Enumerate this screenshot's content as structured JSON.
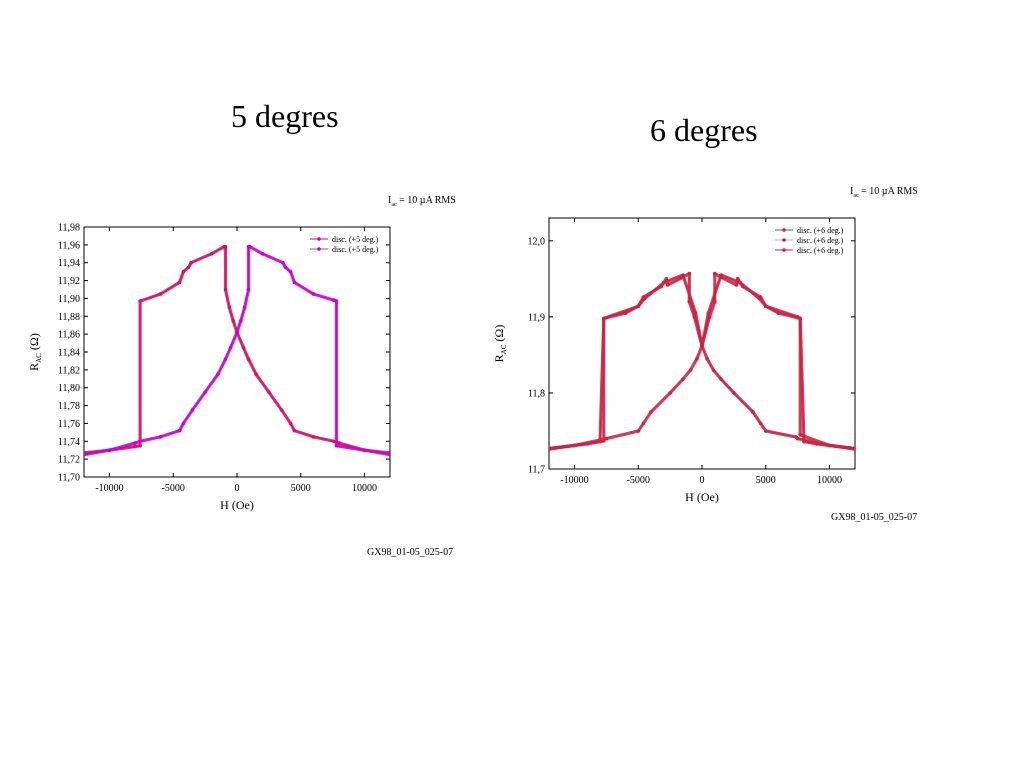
{
  "slide": {
    "title_left": "5 degres",
    "title_right": "6 degres",
    "current_label_prefix": "I",
    "current_label_sub": "ac",
    "current_label_rest": " = 10 µA RMS",
    "file_label": "GX98_01-05_025-07"
  },
  "chart_data": [
    {
      "type": "line",
      "title": "5 degres",
      "xlabel": "H (Oe)",
      "ylabel_main": "R",
      "ylabel_sub": "AC",
      "ylabel_unit": " (Ω)",
      "xlim": [
        -12000,
        12000
      ],
      "ylim": [
        11.7,
        11.98
      ],
      "xticks": [
        -10000,
        -5000,
        0,
        5000,
        10000
      ],
      "xtick_labels": [
        "-10000",
        "-5000",
        "0",
        "5000",
        "10000"
      ],
      "yticks": [
        11.7,
        11.72,
        11.74,
        11.76,
        11.78,
        11.8,
        11.82,
        11.84,
        11.86,
        11.88,
        11.9,
        11.92,
        11.94,
        11.96,
        11.98
      ],
      "ytick_labels": [
        "11,70",
        "11,72",
        "11,74",
        "11,76",
        "11,78",
        "11,80",
        "11,82",
        "11,84",
        "11,86",
        "11,88",
        "11,90",
        "11,92",
        "11,94",
        "11,96",
        "11,98"
      ],
      "grid": false,
      "legend_position": "top-right",
      "series": [
        {
          "name": "disc. (+5 deg.)",
          "color": "#cc00cc",
          "marker_color": "#d4145a",
          "x": [
            -12000,
            -10000,
            -8000,
            -7600,
            -7600,
            -6000,
            -4500,
            -4200,
            -3800,
            -3600,
            -2000,
            -1000,
            -900,
            -900,
            -600,
            -300,
            0,
            500,
            900,
            1500,
            2500,
            3500,
            4200,
            4500,
            6000,
            7600,
            8000,
            8000,
            10000,
            12000
          ],
          "y": [
            11.727,
            11.73,
            11.734,
            11.735,
            11.897,
            11.905,
            11.918,
            11.93,
            11.935,
            11.94,
            11.95,
            11.958,
            11.958,
            11.91,
            11.89,
            11.875,
            11.862,
            11.845,
            11.832,
            11.815,
            11.795,
            11.775,
            11.76,
            11.752,
            11.745,
            11.74,
            11.738,
            11.738,
            11.73,
            11.725
          ]
        },
        {
          "name": "disc. (+5 deg.)",
          "color": "#6666dd",
          "marker_color": "#cc00cc",
          "x": [
            -12000,
            -10000,
            -8000,
            -7600,
            -6000,
            -4500,
            -4200,
            -3500,
            -2500,
            -1500,
            -900,
            -500,
            0,
            300,
            600,
            900,
            900,
            1000,
            2000,
            3600,
            3800,
            4200,
            4500,
            6000,
            7600,
            7600,
            7800,
            7800,
            10000,
            12000
          ],
          "y": [
            11.725,
            11.73,
            11.738,
            11.74,
            11.745,
            11.752,
            11.76,
            11.775,
            11.795,
            11.815,
            11.832,
            11.845,
            11.862,
            11.875,
            11.89,
            11.91,
            11.958,
            11.958,
            11.95,
            11.94,
            11.935,
            11.93,
            11.918,
            11.905,
            11.898,
            11.898,
            11.897,
            11.735,
            11.73,
            11.727
          ]
        }
      ]
    },
    {
      "type": "line",
      "title": "6 degres",
      "xlabel": "H (Oe)",
      "ylabel_main": "R",
      "ylabel_sub": "AC",
      "ylabel_unit": " (Ω)",
      "xlim": [
        -12000,
        12000
      ],
      "ylim": [
        11.7,
        12.03
      ],
      "xticks": [
        -10000,
        -5000,
        0,
        5000,
        10000
      ],
      "xtick_labels": [
        "-10000",
        "-5000",
        "0",
        "5000",
        "10000"
      ],
      "yticks": [
        11.7,
        11.8,
        11.9,
        12.0
      ],
      "ytick_labels": [
        "11,7",
        "11,8",
        "11,9",
        "12,0"
      ],
      "grid": false,
      "legend_position": "top-right",
      "series": [
        {
          "name": "disc. (+6 deg.)",
          "color": "#228822",
          "marker_color": "#cc2244",
          "x": [
            -12000,
            -10000,
            -8000,
            -7700,
            -7700,
            -5000,
            -4600,
            -3200,
            -2800,
            -2700,
            -1500,
            -1000,
            -1000,
            -600,
            0,
            400,
            900,
            1500,
            2500,
            4000,
            4600,
            5000,
            7400,
            7500,
            7500,
            10000,
            12000
          ],
          "y": [
            11.727,
            11.731,
            11.736,
            11.737,
            11.898,
            11.914,
            11.926,
            11.94,
            11.95,
            11.942,
            11.952,
            11.957,
            11.92,
            11.9,
            11.862,
            11.845,
            11.83,
            11.818,
            11.8,
            11.775,
            11.76,
            11.75,
            11.742,
            11.74,
            11.74,
            11.731,
            11.726
          ]
        },
        {
          "name": "disc. (+6 deg.)",
          "color": "#88cc88",
          "marker_color": "#cc2244",
          "x": [
            -12000,
            -10000,
            -7500,
            -5000,
            -4600,
            -4000,
            -2500,
            -1500,
            -900,
            -400,
            0,
            600,
            1000,
            1000,
            1500,
            2700,
            2800,
            3200,
            4600,
            5000,
            7500,
            7700,
            7700,
            10000,
            12000
          ],
          "y": [
            11.726,
            11.731,
            11.74,
            11.75,
            11.76,
            11.775,
            11.8,
            11.818,
            11.83,
            11.845,
            11.862,
            11.9,
            11.92,
            11.957,
            11.952,
            11.942,
            11.95,
            11.94,
            11.926,
            11.914,
            11.9,
            11.898,
            11.745,
            11.731,
            11.727
          ]
        },
        {
          "name": "disc. (+6 deg.)",
          "color": "#cc2244",
          "marker_color": "#cc2244",
          "x": [
            -12000,
            -9000,
            -8000,
            -7700,
            -6000,
            -5000,
            -4500,
            -3000,
            -1500,
            -500,
            0,
            500,
            1500,
            3000,
            4500,
            5000,
            6000,
            7700,
            8000,
            9000,
            12000
          ],
          "y": [
            11.727,
            11.733,
            11.736,
            11.898,
            11.905,
            11.914,
            11.924,
            11.945,
            11.955,
            11.905,
            11.862,
            11.905,
            11.955,
            11.945,
            11.924,
            11.914,
            11.905,
            11.898,
            11.736,
            11.733,
            11.727
          ]
        }
      ]
    }
  ]
}
